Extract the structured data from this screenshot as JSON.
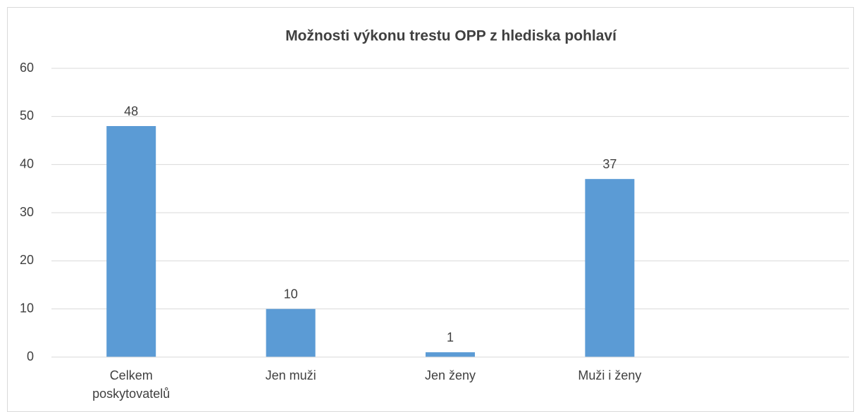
{
  "chart_data": {
    "type": "bar",
    "title": "Možnosti výkonu trestu OPP z hlediska pohlaví",
    "categories": [
      "Celkem poskytovatelů",
      "Jen muži",
      "Jen ženy",
      "Muži i ženy",
      null
    ],
    "values": [
      48,
      10,
      1,
      37,
      null
    ],
    "color": "#5b9bd5",
    "ylim": [
      0,
      60
    ],
    "yticks": [
      0,
      10,
      20,
      30,
      40,
      50,
      60
    ],
    "grid": true
  }
}
